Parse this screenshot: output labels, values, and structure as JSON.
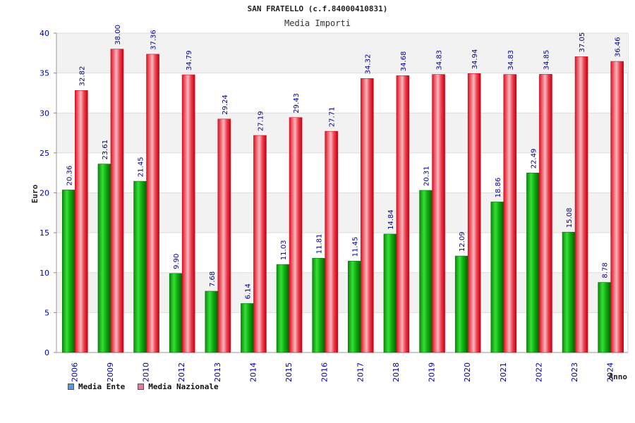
{
  "colors": {
    "ente": "#1ca51c",
    "nazionale": "#ee1c2a",
    "legend_ente": "#5599ee",
    "legend_nazionale": "#e07aa0",
    "band": "#f2f2f2",
    "text_blue": "#0000aa"
  },
  "legend": {
    "ente": "Media Ente",
    "nazionale": "Media Nazionale"
  },
  "chart_data": {
    "type": "bar",
    "title": "SAN FRATELLO (c.f.84000410831)",
    "subtitle": "Media Importi",
    "xlabel": "Anno",
    "ylabel": "Euro",
    "ylim": [
      0,
      40
    ],
    "yticks": [
      0,
      5,
      10,
      15,
      20,
      25,
      30,
      35,
      40
    ],
    "grid": true,
    "legend_position": "bottom-left",
    "categories": [
      "2006",
      "2009",
      "2010",
      "2012",
      "2013",
      "2014",
      "2015",
      "2016",
      "2017",
      "2018",
      "2019",
      "2020",
      "2021",
      "2022",
      "2023",
      "2024"
    ],
    "series": [
      {
        "name": "Media Ente",
        "values": [
          20.36,
          23.61,
          21.45,
          9.9,
          7.68,
          6.14,
          11.03,
          11.81,
          11.45,
          14.84,
          20.31,
          12.09,
          18.86,
          22.49,
          15.08,
          8.78
        ],
        "labels": [
          "20.36",
          "23.61",
          "21.45",
          "9.90",
          "7.68",
          "6.14",
          "11.03",
          "11.81",
          "11.45",
          "14.84",
          "20.31",
          "12.09",
          "18.86",
          "22.49",
          "15.08",
          "8.78"
        ]
      },
      {
        "name": "Media Nazionale",
        "values": [
          32.82,
          38.0,
          37.36,
          34.79,
          29.24,
          27.19,
          29.43,
          27.71,
          34.32,
          34.68,
          34.83,
          34.94,
          34.83,
          34.85,
          37.05,
          36.46
        ],
        "labels": [
          "32.82",
          "38.00",
          "37.36",
          "34.79",
          "29.24",
          "27.19",
          "29.43",
          "27.71",
          "34.32",
          "34.68",
          "34.83",
          "34.94",
          "34.83",
          "34.85",
          "37.05",
          "36.46"
        ]
      }
    ]
  }
}
